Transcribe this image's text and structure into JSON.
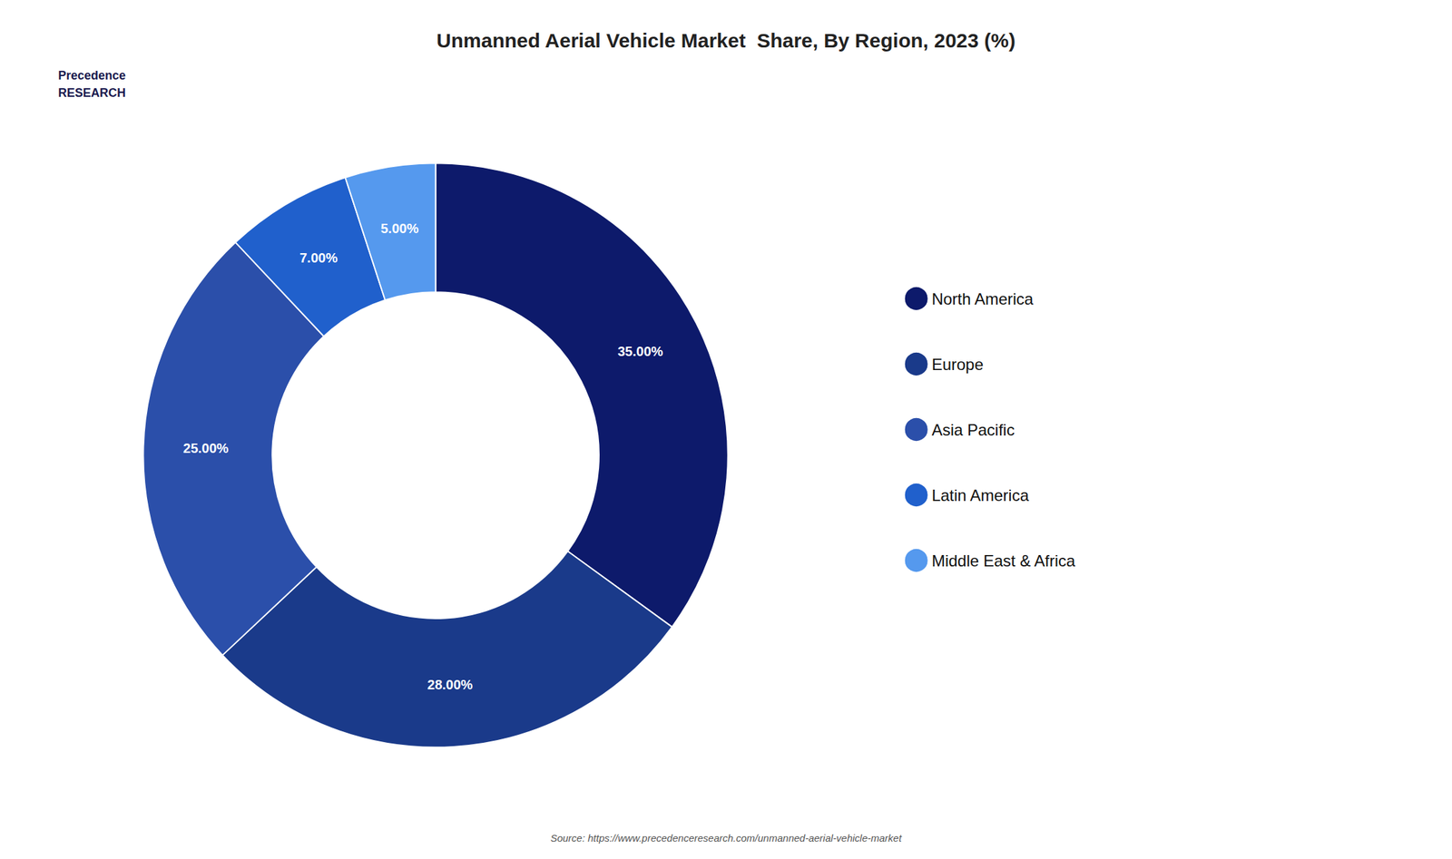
{
  "chart_data": {
    "type": "donut",
    "title": "Unmanned Aerial Vehicle Market  Share, By Region, 2023 (%)",
    "categories": [
      "North America",
      "Europe",
      "Asia Pacific",
      "Latin America",
      "Middle East & Africa"
    ],
    "values": [
      35.0,
      28.0,
      25.0,
      7.0,
      5.0
    ],
    "value_labels": [
      "35.00%",
      "28.00%",
      "25.00%",
      "7.00%",
      "5.00%"
    ],
    "colors": [
      "#0d1a6b",
      "#1a3a8a",
      "#2b4faa",
      "#2060cc",
      "#5599ee"
    ],
    "data_labels": true,
    "legend": "right",
    "annotations": [
      "Precedence\nRESEARCH",
      "Source: https://www.precedenceresearch.com/unmanned-aerial-vehicle-market"
    ]
  }
}
